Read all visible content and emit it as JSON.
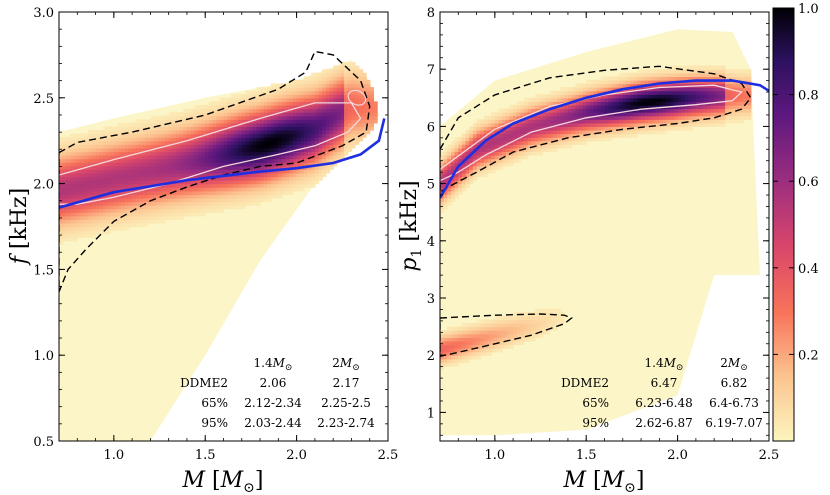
{
  "chart_data": [
    {
      "type": "heatmap",
      "panel": "left",
      "xlabel": "M [M⊙]",
      "ylabel": "f [kHz]",
      "xlim": [
        0.7,
        2.5
      ],
      "ylim": [
        0.5,
        3.0
      ],
      "xticks": [
        1.0,
        1.5,
        2.0,
        2.5
      ],
      "yticks": [
        0.5,
        1.0,
        1.5,
        2.0,
        2.5,
        3.0
      ],
      "xtick_labels": [
        "1.0",
        "1.5",
        "2.0",
        "2.5"
      ],
      "ytick_labels": [
        "0.5",
        "1.0",
        "1.5",
        "2.0",
        "2.5",
        "3.0"
      ],
      "ridge": {
        "x": [
          0.7,
          1.0,
          1.4,
          1.8,
          2.1,
          2.3
        ],
        "y": [
          1.96,
          2.03,
          2.12,
          2.22,
          2.32,
          2.45
        ]
      },
      "band_halfwidth": 0.18,
      "support_upper": {
        "x": [
          0.7,
          1.0,
          1.5,
          2.0,
          2.3,
          2.4,
          2.45
        ],
        "y": [
          2.3,
          2.38,
          2.5,
          2.6,
          2.72,
          2.6,
          2.4
        ]
      },
      "support_lower": {
        "x": [
          0.7,
          0.9,
          1.2,
          1.5,
          1.8,
          2.1,
          2.4,
          2.45
        ],
        "y": [
          0.5,
          0.5,
          0.5,
          1.0,
          1.55,
          2.0,
          2.3,
          2.4
        ]
      },
      "ddme2_curve": {
        "x": [
          0.7,
          1.0,
          1.4,
          1.8,
          2.0,
          2.2,
          2.35,
          2.45,
          2.48
        ],
        "y": [
          1.86,
          1.95,
          2.02,
          2.07,
          2.09,
          2.12,
          2.17,
          2.25,
          2.38
        ]
      },
      "contour_95": {
        "x": [
          0.7,
          0.8,
          1.1,
          1.5,
          1.9,
          2.05,
          2.1,
          2.2,
          2.35,
          2.4,
          2.38,
          2.25,
          2.0,
          1.8,
          1.6,
          1.4,
          1.2,
          1.0,
          0.85,
          0.75,
          0.7
        ],
        "y": [
          2.18,
          2.24,
          2.3,
          2.4,
          2.55,
          2.65,
          2.77,
          2.75,
          2.6,
          2.45,
          2.3,
          2.22,
          2.12,
          2.1,
          2.05,
          1.98,
          1.9,
          1.78,
          1.62,
          1.5,
          1.37
        ]
      },
      "contour_65": {
        "x": [
          0.7,
          1.0,
          1.4,
          1.8,
          2.1,
          2.3,
          2.35,
          2.28,
          2.1,
          1.9,
          1.6,
          1.3,
          1.0,
          0.8,
          0.7
        ],
        "y": [
          2.05,
          2.14,
          2.25,
          2.38,
          2.47,
          2.47,
          2.38,
          2.3,
          2.22,
          2.17,
          2.1,
          2.0,
          1.92,
          1.88,
          1.88
        ]
      },
      "inner_contour": {
        "center": [
          2.33,
          2.5
        ],
        "rx": 0.05,
        "ry": 0.04
      },
      "table": {
        "headers": [
          "",
          "1.4M⊙",
          "2M⊙"
        ],
        "rows": [
          [
            "DDME2",
            "2.06",
            "2.17"
          ],
          [
            "65%",
            "2.12-2.34",
            "2.25-2.5"
          ],
          [
            "95%",
            "2.03-2.44",
            "2.23-2.74"
          ]
        ]
      }
    },
    {
      "type": "heatmap",
      "panel": "right",
      "xlabel": "M [M⊙]",
      "ylabel": "p1 [kHz]",
      "xlim": [
        0.7,
        2.5
      ],
      "ylim": [
        0.5,
        8.0
      ],
      "xticks": [
        1.0,
        1.5,
        2.0,
        2.5
      ],
      "yticks": [
        1,
        2,
        3,
        4,
        5,
        6,
        7,
        8
      ],
      "xtick_labels": [
        "1.0",
        "1.5",
        "2.0",
        "2.5"
      ],
      "ytick_labels": [
        "1",
        "2",
        "3",
        "4",
        "5",
        "6",
        "7",
        "8"
      ],
      "ridge": {
        "x": [
          0.7,
          0.9,
          1.2,
          1.5,
          1.8,
          2.1,
          2.3
        ],
        "y": [
          5.0,
          5.6,
          6.0,
          6.25,
          6.42,
          6.52,
          6.55
        ]
      },
      "band_halfwidth": 0.3,
      "low_mode": {
        "x": [
          0.7,
          1.0,
          1.3,
          1.4
        ],
        "y": [
          2.1,
          2.35,
          2.6,
          2.68
        ]
      },
      "support_upper": {
        "x": [
          0.7,
          1.0,
          1.5,
          2.0,
          2.3,
          2.4
        ],
        "y": [
          6.0,
          6.8,
          7.3,
          7.7,
          7.65,
          7.0
        ]
      },
      "support_lower": {
        "x": [
          0.7,
          1.0,
          1.5,
          2.0,
          2.2,
          2.45
        ],
        "y": [
          0.6,
          0.6,
          0.7,
          1.3,
          3.4,
          3.4
        ]
      },
      "ddme2_curve": {
        "x": [
          0.7,
          0.8,
          0.95,
          1.1,
          1.3,
          1.5,
          1.7,
          1.9,
          2.1,
          2.3,
          2.45,
          2.5
        ],
        "y": [
          4.75,
          5.3,
          5.75,
          6.05,
          6.3,
          6.5,
          6.65,
          6.75,
          6.8,
          6.8,
          6.72,
          6.62
        ]
      },
      "contour_95": {
        "x": [
          0.7,
          0.8,
          1.0,
          1.3,
          1.6,
          1.9,
          2.2,
          2.35,
          2.4,
          2.35,
          2.2,
          2.0,
          1.7,
          1.4,
          1.1,
          0.9,
          0.75,
          0.7
        ],
        "y": [
          5.6,
          6.15,
          6.55,
          6.85,
          6.98,
          7.05,
          6.92,
          6.75,
          6.5,
          6.3,
          6.15,
          6.05,
          5.95,
          5.8,
          5.55,
          5.2,
          4.95,
          4.85
        ]
      },
      "contour_65": {
        "x": [
          0.7,
          1.0,
          1.3,
          1.6,
          1.9,
          2.2,
          2.35,
          2.3,
          2.1,
          1.8,
          1.5,
          1.2,
          0.95,
          0.8,
          0.7
        ],
        "y": [
          5.25,
          5.95,
          6.35,
          6.55,
          6.68,
          6.72,
          6.6,
          6.45,
          6.38,
          6.3,
          6.15,
          5.9,
          5.5,
          5.2,
          5.05
        ]
      },
      "contour_95_low": {
        "x": [
          0.7,
          1.0,
          1.25,
          1.38,
          1.42,
          1.38,
          1.2,
          1.0,
          0.8,
          0.7
        ],
        "y": [
          2.65,
          2.7,
          2.72,
          2.7,
          2.65,
          2.55,
          2.35,
          2.2,
          2.05,
          1.98
        ]
      },
      "table": {
        "headers": [
          "",
          "1.4M⊙",
          "2M⊙"
        ],
        "rows": [
          [
            "DDME2",
            "6.47",
            "6.82"
          ],
          [
            "65%",
            "6.23-6.48",
            "6.4-6.73"
          ],
          [
            "95%",
            "2.62-6.87",
            "6.19-7.07"
          ]
        ]
      }
    }
  ],
  "colorbar": {
    "ticks": [
      0.2,
      0.4,
      0.6,
      0.8,
      1.0
    ],
    "tick_labels": [
      "0.2",
      "0.4",
      "0.6",
      "0.8",
      "1.0"
    ],
    "colormap": "magma_r"
  },
  "colors": {
    "ddme2_curve": "#1f2fe0",
    "contour_95": "#000000",
    "contour_65": "#f6d7dc",
    "support_fill": "#fbf5c8"
  }
}
